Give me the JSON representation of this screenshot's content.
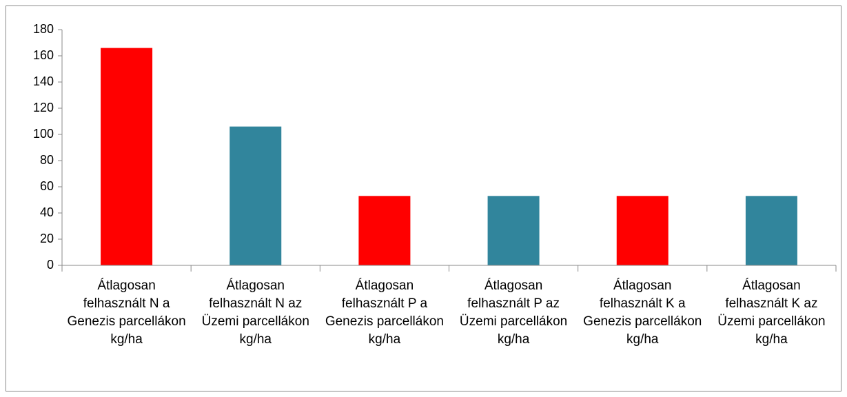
{
  "chart_data": {
    "type": "bar",
    "categories": [
      "Átlagosan felhasznált N a Genezis parcellákon kg/ha",
      "Átlagosan felhasznált N az Üzemi parcellákon kg/ha",
      "Átlagosan felhasznált P a Genezis parcellákon kg/ha",
      "Átlagosan felhasznált P az Üzemi parcellákon kg/ha",
      "Átlagosan felhasznált K a Genezis parcellákon kg/ha",
      "Átlagosan felhasznált K az Üzemi parcellákon kg/ha"
    ],
    "values": [
      166,
      106,
      53,
      53,
      53,
      53
    ],
    "colors": [
      "#ff0000",
      "#31859c",
      "#ff0000",
      "#31859c",
      "#ff0000",
      "#31859c"
    ],
    "ylim": [
      0,
      180
    ],
    "yticks": [
      0,
      20,
      40,
      60,
      80,
      100,
      120,
      140,
      160,
      180
    ],
    "grid": false
  }
}
